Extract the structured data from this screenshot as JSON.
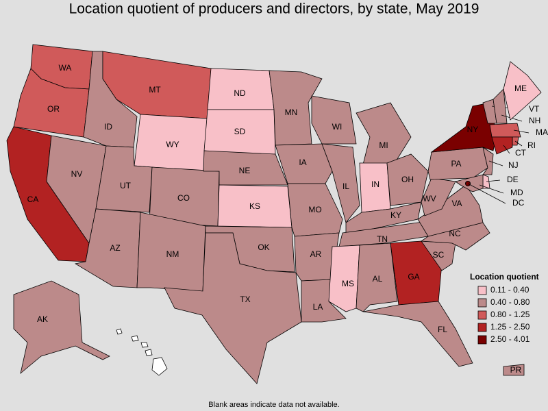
{
  "header": {
    "title": "Location quotient of producers and directors, by state, May 2019"
  },
  "states": [
    {
      "label": "WA",
      "color": "#d05a5a"
    },
    {
      "label": "OR",
      "color": "#d05a5a"
    },
    {
      "label": "CA",
      "color": "#b22222"
    },
    {
      "label": "NV",
      "color": "#bc8a8a"
    },
    {
      "label": "ID",
      "color": "#bc8a8a"
    },
    {
      "label": "MT",
      "color": "#d05a5a"
    },
    {
      "label": "WY",
      "color": "#f8c0c8"
    },
    {
      "label": "UT",
      "color": "#bc8a8a"
    },
    {
      "label": "CO",
      "color": "#bc8a8a"
    },
    {
      "label": "AZ",
      "color": "#bc8a8a"
    },
    {
      "label": "NM",
      "color": "#bc8a8a"
    },
    {
      "label": "ND",
      "color": "#f8c0c8"
    },
    {
      "label": "SD",
      "color": "#f8c0c8"
    },
    {
      "label": "NE",
      "color": "#bc8a8a"
    },
    {
      "label": "KS",
      "color": "#f8c0c8"
    },
    {
      "label": "OK",
      "color": "#bc8a8a"
    },
    {
      "label": "TX",
      "color": "#bc8a8a"
    },
    {
      "label": "MN",
      "color": "#bc8a8a"
    },
    {
      "label": "IA",
      "color": "#bc8a8a"
    },
    {
      "label": "MO",
      "color": "#bc8a8a"
    },
    {
      "label": "AR",
      "color": "#bc8a8a"
    },
    {
      "label": "LA",
      "color": "#bc8a8a"
    },
    {
      "label": "WI",
      "color": "#bc8a8a"
    },
    {
      "label": "IL",
      "color": "#bc8a8a"
    },
    {
      "label": "MI",
      "color": "#bc8a8a"
    },
    {
      "label": "IN",
      "color": "#f8c0c8"
    },
    {
      "label": "OH",
      "color": "#bc8a8a"
    },
    {
      "label": "KY",
      "color": "#bc8a8a"
    },
    {
      "label": "TN",
      "color": "#bc8a8a"
    },
    {
      "label": "MS",
      "color": "#f8c0c8"
    },
    {
      "label": "AL",
      "color": "#bc8a8a"
    },
    {
      "label": "GA",
      "color": "#b22222"
    },
    {
      "label": "FL",
      "color": "#bc8a8a"
    },
    {
      "label": "SC",
      "color": "#bc8a8a"
    },
    {
      "label": "NC",
      "color": "#bc8a8a"
    },
    {
      "label": "VA",
      "color": "#bc8a8a"
    },
    {
      "label": "WV",
      "color": "#bc8a8a"
    },
    {
      "label": "PA",
      "color": "#bc8a8a"
    },
    {
      "label": "NY",
      "color": "#7a0000"
    },
    {
      "label": "VT",
      "color": "#bc8a8a"
    },
    {
      "label": "NH",
      "color": "#bc8a8a"
    },
    {
      "label": "ME",
      "color": "#f8c0c8"
    },
    {
      "label": "MA",
      "color": "#d05a5a"
    },
    {
      "label": "RI",
      "color": "#d05a5a"
    },
    {
      "label": "CT",
      "color": "#b22222"
    },
    {
      "label": "NJ",
      "color": "#bc8a8a"
    },
    {
      "label": "DE",
      "color": "#f8c0c8"
    },
    {
      "label": "MD",
      "color": "#bc8a8a"
    },
    {
      "label": "DC",
      "color": "#7a0000"
    },
    {
      "label": "AK",
      "color": "#bc8a8a"
    },
    {
      "label": "PR",
      "color": "#bc8a8a"
    }
  ],
  "legend": {
    "title": "Location quotient",
    "items": [
      {
        "label": "0.11 - 0.40",
        "color": "#f8c0c8"
      },
      {
        "label": "0.40 - 0.80",
        "color": "#bc8a8a"
      },
      {
        "label": "0.80 - 1.25",
        "color": "#d05a5a"
      },
      {
        "label": "1.25 - 2.50",
        "color": "#b22222"
      },
      {
        "label": "2.50 - 4.01",
        "color": "#7a0000"
      }
    ]
  },
  "note": "Blank areas indicate data not available."
}
